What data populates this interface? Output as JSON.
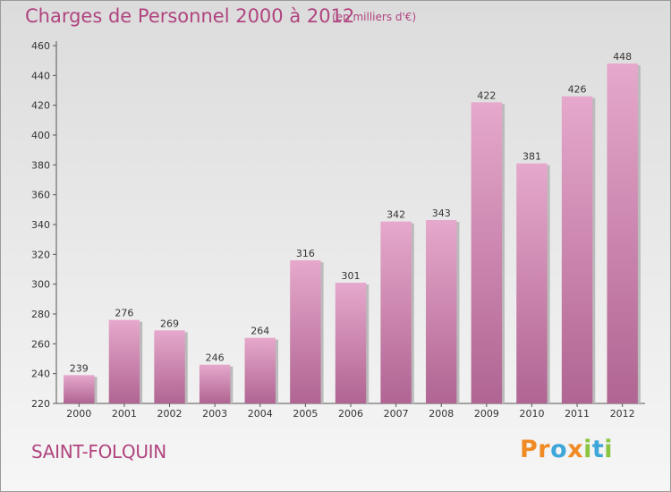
{
  "header": {
    "title": "Charges de Personnel 2000 à 2012",
    "subtitle": "(en milliers d'€)"
  },
  "place": "SAINT-FOLQUIN",
  "logo": {
    "text": "Proxiti",
    "letters": [
      "P",
      "r",
      "o",
      "x",
      "i",
      "t",
      "i"
    ],
    "colors": [
      "#f08a24",
      "#f08a24",
      "#3ea6d8",
      "#f08a24",
      "#8bc43f",
      "#3ea6d8",
      "#8bc43f"
    ]
  },
  "colors": {
    "accent": "#b0447f",
    "bar_top": "#e6a8cc",
    "bar_bottom": "#b06592"
  },
  "chart_data": {
    "type": "bar",
    "title": "Charges de Personnel 2000 à 2012",
    "subtitle": "(en milliers d'€)",
    "categories": [
      "2000",
      "2001",
      "2002",
      "2003",
      "2004",
      "2005",
      "2006",
      "2007",
      "2008",
      "2009",
      "2010",
      "2011",
      "2012"
    ],
    "values": [
      239,
      276,
      269,
      246,
      264,
      316,
      301,
      342,
      343,
      422,
      381,
      426,
      448
    ],
    "ylim": [
      220,
      460
    ],
    "yticks": [
      220,
      240,
      260,
      280,
      300,
      320,
      340,
      360,
      380,
      400,
      420,
      440,
      460
    ],
    "grid": false,
    "legend": "none"
  }
}
